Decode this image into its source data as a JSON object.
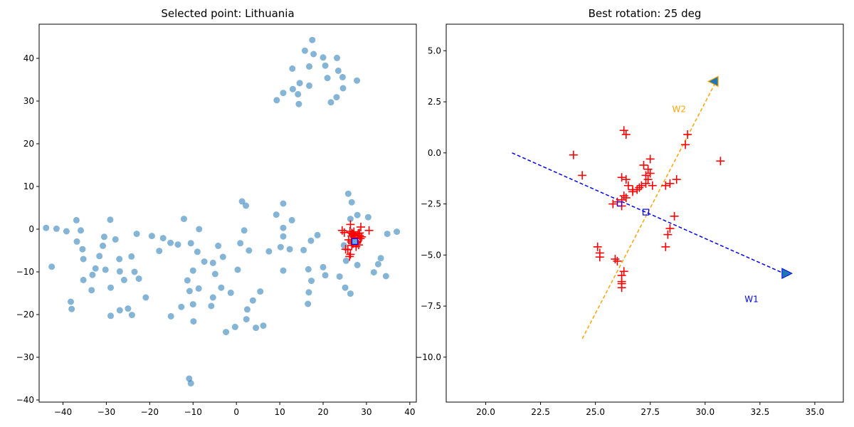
{
  "chart_data": [
    {
      "type": "scatter",
      "title": "Selected point: Lithuania",
      "xlabel": "",
      "ylabel": "",
      "xlim": [
        -45.5,
        41.5
      ],
      "ylim": [
        -40.5,
        48
      ],
      "xticks": [
        -40,
        -30,
        -20,
        -10,
        0,
        10,
        20,
        30,
        40
      ],
      "yticks": [
        -40,
        -30,
        -20,
        -10,
        0,
        10,
        20,
        30,
        40
      ],
      "grid": false,
      "legend": "none",
      "colors": {
        "points": "#1f77b4",
        "neighbors": "#ff0000",
        "selected_face": "#6fa8dc",
        "selected_edge": "#0000ff"
      },
      "points": [
        [
          17.5,
          44.3
        ],
        [
          15.8,
          41.8
        ],
        [
          17.8,
          41
        ],
        [
          20,
          40.2
        ],
        [
          23.2,
          40.1
        ],
        [
          16.8,
          38.1
        ],
        [
          20.5,
          38.3
        ],
        [
          12.9,
          37.6
        ],
        [
          23.5,
          37.1
        ],
        [
          21,
          35.4
        ],
        [
          24.5,
          35.6
        ],
        [
          27.8,
          34.8
        ],
        [
          14.6,
          34.2
        ],
        [
          16.8,
          33.6
        ],
        [
          13,
          32.8
        ],
        [
          24.6,
          33
        ],
        [
          10.8,
          31.9
        ],
        [
          14.2,
          31.6
        ],
        [
          23.1,
          30.9
        ],
        [
          9.3,
          30.2
        ],
        [
          21.8,
          29.7
        ],
        [
          14.4,
          29.3
        ],
        [
          25.8,
          8.3
        ],
        [
          26.6,
          6.3
        ],
        [
          1.3,
          6.5
        ],
        [
          10.8,
          6
        ],
        [
          2.2,
          5.5
        ],
        [
          9.2,
          3.4
        ],
        [
          12.8,
          2.1
        ],
        [
          26.3,
          2.4
        ],
        [
          30.4,
          2.8
        ],
        [
          27.9,
          3.3
        ],
        [
          -12.1,
          2.4
        ],
        [
          -29.1,
          2.2
        ],
        [
          -36.9,
          2.1
        ],
        [
          -43.9,
          0.3
        ],
        [
          -41.5,
          0.1
        ],
        [
          -39.2,
          -0.5
        ],
        [
          -35.9,
          -0.3
        ],
        [
          -8.6,
          0
        ],
        [
          1.8,
          -0.3
        ],
        [
          10.8,
          0.3
        ],
        [
          -23,
          -1.1
        ],
        [
          18.7,
          -1.4
        ],
        [
          -30.5,
          -1.8
        ],
        [
          -19.5,
          -1.6
        ],
        [
          -16.9,
          -2.1
        ],
        [
          10.8,
          -1.7
        ],
        [
          -36.8,
          -2.9
        ],
        [
          -27.9,
          -2.4
        ],
        [
          -15.2,
          -3.2
        ],
        [
          -13.5,
          -3.6
        ],
        [
          -10.5,
          -3.3
        ],
        [
          -4.2,
          -3.9
        ],
        [
          0.9,
          -3.3
        ],
        [
          -30.8,
          -3.9
        ],
        [
          -35.5,
          -4.7
        ],
        [
          -9,
          -5.3
        ],
        [
          2.9,
          -5
        ],
        [
          12.3,
          -4.7
        ],
        [
          10.2,
          -4.2
        ],
        [
          15.5,
          -4.9
        ],
        [
          17.2,
          -2.7
        ],
        [
          24.8,
          -3.8
        ],
        [
          -17.8,
          -5.1
        ],
        [
          -31.6,
          -6.3
        ],
        [
          -24.2,
          -6.4
        ],
        [
          -35.3,
          -7
        ],
        [
          -27,
          -7
        ],
        [
          -3.1,
          -6.5
        ],
        [
          -7.4,
          -7.6
        ],
        [
          -5.4,
          -7.9
        ],
        [
          7.5,
          -5.2
        ],
        [
          25.3,
          -7.4
        ],
        [
          33.3,
          -6.8
        ],
        [
          -42.6,
          -8.8
        ],
        [
          -32.5,
          -9.2
        ],
        [
          -30.2,
          -9.5
        ],
        [
          -10,
          -9.7
        ],
        [
          -4.9,
          -10.5
        ],
        [
          0.3,
          -9.5
        ],
        [
          10.8,
          -9.7
        ],
        [
          16.6,
          -9.4
        ],
        [
          20,
          -8.9
        ],
        [
          27.9,
          -8.4
        ],
        [
          -33.2,
          -10.7
        ],
        [
          -26.9,
          -9.9
        ],
        [
          -23.5,
          -10
        ],
        [
          -35.3,
          -11.9
        ],
        [
          -25.9,
          -11.9
        ],
        [
          -22.5,
          -11.6
        ],
        [
          -11.3,
          -12
        ],
        [
          17.3,
          -12.1
        ],
        [
          20.5,
          -10.8
        ],
        [
          23.8,
          -11.1
        ],
        [
          31.7,
          -10.1
        ],
        [
          32.7,
          -8.2
        ],
        [
          34.5,
          -11
        ],
        [
          -33.4,
          -14.3
        ],
        [
          -29,
          -13.7
        ],
        [
          -10.8,
          -14.5
        ],
        [
          -8.7,
          -13.9
        ],
        [
          -3.5,
          -13.7
        ],
        [
          -1.3,
          -14.9
        ],
        [
          5.5,
          -14.6
        ],
        [
          16.7,
          -14.8
        ],
        [
          25.1,
          -13.7
        ],
        [
          26.3,
          -15.1
        ],
        [
          -20.9,
          -16
        ],
        [
          -5.4,
          -16
        ],
        [
          -38.2,
          -17
        ],
        [
          -10,
          -17.6
        ],
        [
          -5.8,
          -18
        ],
        [
          -12.7,
          -18.2
        ],
        [
          -26.9,
          -19
        ],
        [
          -25,
          -18.6
        ],
        [
          -38,
          -18.7
        ],
        [
          3.8,
          -16.7
        ],
        [
          2.5,
          -18.8
        ],
        [
          16.5,
          -17.5
        ],
        [
          -29,
          -20.3
        ],
        [
          -24.1,
          -20.1
        ],
        [
          -15.1,
          -20.4
        ],
        [
          2.3,
          -21.1
        ],
        [
          -9.9,
          -21.6
        ],
        [
          -0.3,
          -22.9
        ],
        [
          4.5,
          -23.1
        ],
        [
          6.2,
          -22.6
        ],
        [
          -2.4,
          -24.1
        ],
        [
          -10.9,
          -35
        ],
        [
          -10.5,
          -36.1
        ],
        [
          34.8,
          -1.1
        ],
        [
          37,
          -0.6
        ]
      ],
      "neighbors": [
        [
          27.2,
          -1.9
        ],
        [
          26.5,
          -2.6
        ],
        [
          28.4,
          -1.5
        ],
        [
          25.2,
          -4.7
        ],
        [
          27.6,
          -4.1
        ],
        [
          26.3,
          -5.9
        ],
        [
          25.7,
          -4.8
        ],
        [
          28.9,
          -1.8
        ],
        [
          27.9,
          -2.1
        ],
        [
          26.6,
          -0.9
        ],
        [
          27.1,
          -0.6
        ],
        [
          28.1,
          -1
        ],
        [
          27.7,
          -3.3
        ],
        [
          28.2,
          -3.7
        ],
        [
          26.9,
          -1.3
        ],
        [
          24.4,
          -0.3
        ],
        [
          26.8,
          -1.1
        ],
        [
          27.3,
          -2.6
        ],
        [
          28.7,
          0.5
        ],
        [
          30.6,
          -0.3
        ],
        [
          26.3,
          1.1
        ],
        [
          26.1,
          -6.4
        ],
        [
          26.6,
          -1.6
        ],
        [
          28.6,
          -2.2
        ],
        [
          27.9,
          -2.9
        ],
        [
          26.6,
          -3.8
        ],
        [
          25.9,
          -2.5
        ],
        [
          24.9,
          -0.8
        ],
        [
          28.4,
          -0.9
        ],
        [
          26.2,
          -0.5
        ],
        [
          27.4,
          -1.5
        ],
        [
          27.8,
          -3.1
        ],
        [
          26.9,
          -3.4
        ],
        [
          26.5,
          -3.0
        ]
      ],
      "selected": [
        27.3,
        -2.9
      ]
    },
    {
      "type": "scatter",
      "title": "Best rotation: 25 deg",
      "xlabel": "",
      "ylabel": "",
      "xlim": [
        18.2,
        36.3
      ],
      "ylim": [
        -12.2,
        6.3
      ],
      "xticks": [
        20.0,
        22.5,
        25.0,
        27.5,
        30.0,
        32.5,
        35.0
      ],
      "xtick_labels": [
        "20.0",
        "22.5",
        "25.0",
        "27.5",
        "30.0",
        "32.5",
        "35.0"
      ],
      "yticks": [
        5.0,
        2.5,
        0.0,
        -2.5,
        -5.0,
        -7.5,
        -10.0
      ],
      "ytick_labels": [
        "5.0",
        "2.5",
        "0.0",
        "−2.5",
        "−5.0",
        "−7.5",
        "−10.0"
      ],
      "grid": false,
      "legend": "none",
      "colors": {
        "neighbors": "#ff0000",
        "w1": "#0000ff",
        "w2": "#ffa500",
        "w1_marker": "#1f77b4",
        "w2_marker": "#1f77b4",
        "selected_edge": "#0000ff"
      },
      "neighbors": [
        [
          24.0,
          -0.1
        ],
        [
          24.4,
          -1.1
        ],
        [
          26.3,
          1.1
        ],
        [
          26.4,
          0.9
        ],
        [
          29.2,
          0.9
        ],
        [
          29.1,
          0.4
        ],
        [
          30.7,
          -0.4
        ],
        [
          27.5,
          -0.3
        ],
        [
          27.2,
          -0.6
        ],
        [
          27.4,
          -0.8
        ],
        [
          27.5,
          -1.0
        ],
        [
          27.3,
          -1.1
        ],
        [
          27.4,
          -1.3
        ],
        [
          27.3,
          -1.5
        ],
        [
          27.6,
          -1.6
        ],
        [
          27.1,
          -1.6
        ],
        [
          27.0,
          -1.7
        ],
        [
          26.9,
          -1.8
        ],
        [
          26.7,
          -1.8
        ],
        [
          26.7,
          -1.9
        ],
        [
          26.5,
          -1.6
        ],
        [
          26.4,
          -1.3
        ],
        [
          26.2,
          -1.2
        ],
        [
          28.2,
          -1.6
        ],
        [
          28.4,
          -1.5
        ],
        [
          28.7,
          -1.3
        ],
        [
          26.4,
          -2.2
        ],
        [
          26.2,
          -2.3
        ],
        [
          26.2,
          -2.6
        ],
        [
          26.0,
          -2.4
        ],
        [
          25.8,
          -2.5
        ],
        [
          26.3,
          -2.1
        ],
        [
          28.6,
          -3.1
        ],
        [
          28.4,
          -3.7
        ],
        [
          28.3,
          -4.0
        ],
        [
          28.2,
          -4.6
        ],
        [
          25.1,
          -4.6
        ],
        [
          25.2,
          -4.9
        ],
        [
          25.2,
          -5.1
        ],
        [
          25.9,
          -5.2
        ],
        [
          26.0,
          -5.3
        ],
        [
          26.3,
          -5.8
        ],
        [
          26.2,
          -6.0
        ],
        [
          26.2,
          -6.3
        ],
        [
          26.2,
          -6.4
        ],
        [
          26.2,
          -6.6
        ]
      ],
      "w1_line": [
        [
          21.2,
          0.0
        ],
        [
          33.8,
          -6.0
        ]
      ],
      "w2_line": [
        [
          24.4,
          -9.1
        ],
        [
          30.5,
          3.5
        ]
      ],
      "w1_marker": [
        33.7,
        -5.9
      ],
      "w2_marker": [
        30.4,
        3.5
      ],
      "selected": [
        27.3,
        -2.9
      ],
      "selected_small": [
        26.1,
        -2.5
      ],
      "annotations": [
        {
          "text": "W2",
          "x": 28.5,
          "y": 2.0,
          "color": "#ffa500"
        },
        {
          "text": "W1",
          "x": 31.8,
          "y": -7.3,
          "color": "#0000ff"
        }
      ]
    }
  ]
}
